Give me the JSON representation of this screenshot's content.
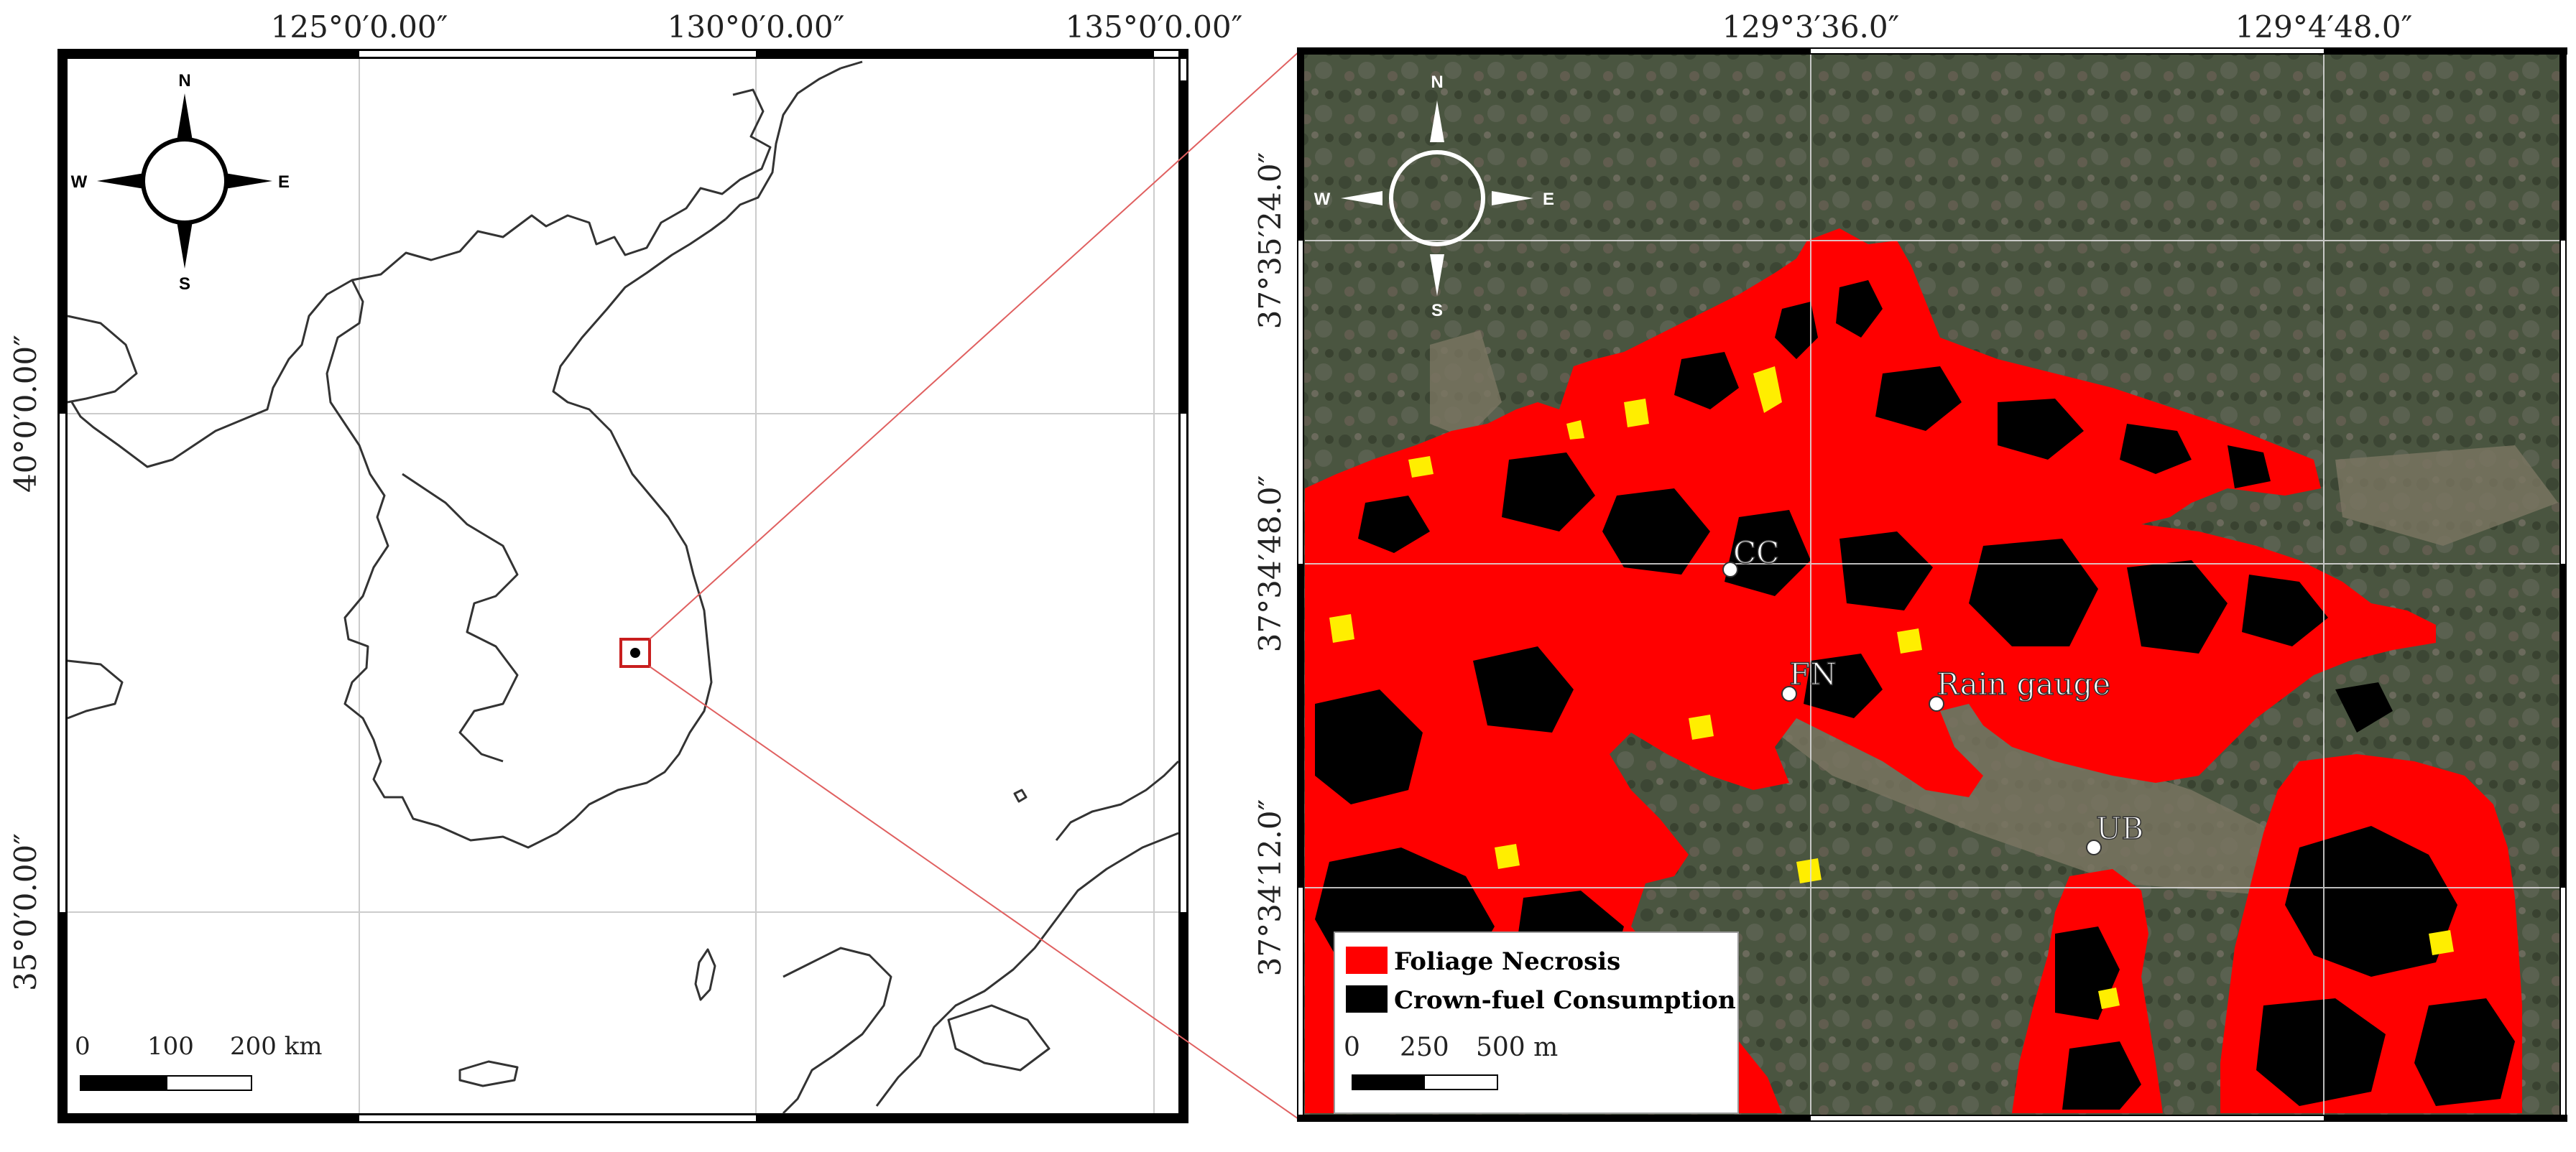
{
  "left_map": {
    "top_ticks": [
      "125°0′0.00″",
      "130°0′0.00″",
      "135°0′0.00″"
    ],
    "left_ticks": [
      "40°0′0.00″",
      "35°0′0.00″"
    ],
    "compass": {
      "n": "N",
      "e": "E",
      "s": "S",
      "w": "W"
    },
    "scale": {
      "ticks": [
        "0",
        "100",
        "200 km"
      ]
    }
  },
  "right_map": {
    "top_ticks": [
      "129°3′36.0″",
      "129°4′48.0″"
    ],
    "left_ticks": [
      "37°35′24.0″",
      "37°34′48.0″",
      "37°34′12.0″"
    ],
    "compass": {
      "n": "N",
      "e": "E",
      "s": "S",
      "w": "W"
    },
    "sites": [
      {
        "label": "CC"
      },
      {
        "label": "FN"
      },
      {
        "label": "Rain gauge"
      },
      {
        "label": "UB"
      }
    ],
    "legend": {
      "items": [
        {
          "label": "Foliage Necrosis",
          "color": "#ff0000"
        },
        {
          "label": "Crown-fuel Consumption",
          "color": "#000000"
        }
      ],
      "scale_ticks": [
        "0",
        "250",
        "500 m"
      ]
    }
  }
}
